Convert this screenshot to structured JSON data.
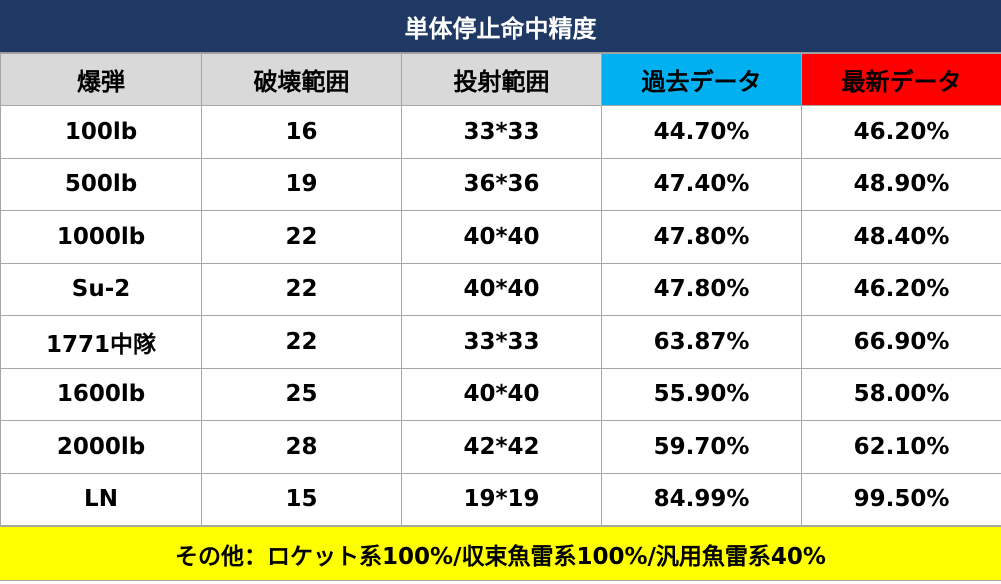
{
  "title": "単体停止命中精度",
  "columns": [
    "爆弾",
    "破壊範囲",
    "投射範囲",
    "過去データ",
    "最新データ"
  ],
  "colors": {
    "title_bg": "#1f3864",
    "header_bg": "#d9d9d9",
    "past_bg": "#00b0f0",
    "latest_bg": "#ff0000",
    "footer_bg": "#ffff00"
  },
  "rows": [
    [
      "100lb",
      "16",
      "33*33",
      "44.70%",
      "46.20%"
    ],
    [
      "500lb",
      "19",
      "36*36",
      "47.40%",
      "48.90%"
    ],
    [
      "1000lb",
      "22",
      "40*40",
      "47.80%",
      "48.40%"
    ],
    [
      "Su-2",
      "22",
      "40*40",
      "47.80%",
      "46.20%"
    ],
    [
      "1771中隊",
      "22",
      "33*33",
      "63.87%",
      "66.90%"
    ],
    [
      "1600lb",
      "25",
      "40*40",
      "55.90%",
      "58.00%"
    ],
    [
      "2000lb",
      "28",
      "42*42",
      "59.70%",
      "62.10%"
    ],
    [
      "LN",
      "15",
      "19*19",
      "84.99%",
      "99.50%"
    ]
  ],
  "footer": "その他：ロケット系100%/収束魚雷系100%/汎用魚雷系40%"
}
